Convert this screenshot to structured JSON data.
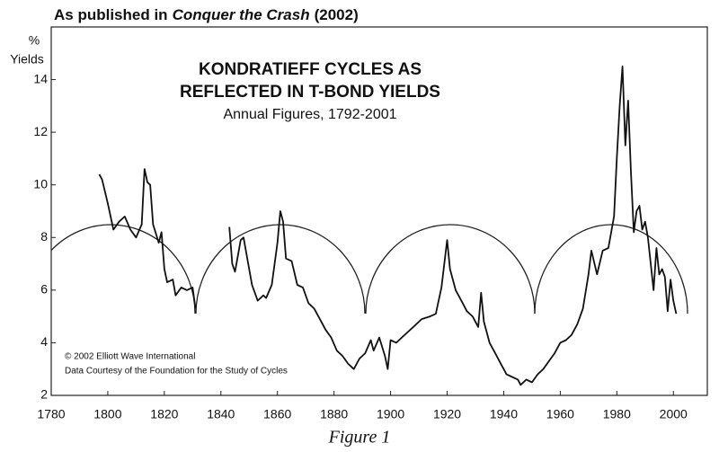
{
  "header": [
    "As published in",
    "Conquer the Crash",
    "(2002)"
  ],
  "chart_data": {
    "type": "line",
    "title": [
      "KONDRATIEFF CYCLES AS",
      "REFLECTED IN T-BOND YIELDS"
    ],
    "subtitle": "Annual Figures, 1792-2001",
    "y_label": [
      "%",
      "Yields"
    ],
    "notes": [
      "© 2002 Elliott Wave International",
      "Data Courtesy of the Foundation for the Study of Cycles"
    ],
    "caption": "Figure 1",
    "color": "#111111",
    "xlim": [
      1780,
      2012
    ],
    "xticks": [
      1780,
      1800,
      1820,
      1840,
      1860,
      1880,
      1900,
      1920,
      1940,
      1960,
      1980,
      2000
    ],
    "ylim": [
      2,
      16
    ],
    "yticks": [
      2,
      4,
      6,
      8,
      10,
      12,
      14
    ],
    "x": [
      1797,
      1798,
      1800,
      1802,
      1804,
      1806,
      1808,
      1810,
      1812,
      1813,
      1814,
      1815,
      1816,
      1818,
      1819,
      1820,
      1821,
      1823,
      1824,
      1826,
      1828,
      1830,
      1831,
      1837,
      1843,
      1844,
      1845,
      1847,
      1848,
      1849,
      1851,
      1853,
      1855,
      1856,
      1858,
      1860,
      1861,
      1862,
      1863,
      1865,
      1867,
      1869,
      1871,
      1873,
      1875,
      1877,
      1879,
      1881,
      1883,
      1885,
      1887,
      1889,
      1891,
      1893,
      1894,
      1896,
      1898,
      1899,
      1900,
      1902,
      1905,
      1908,
      1911,
      1914,
      1916,
      1918,
      1920,
      1921,
      1923,
      1925,
      1927,
      1929,
      1931,
      1932,
      1933,
      1935,
      1937,
      1939,
      1941,
      1943,
      1945,
      1946,
      1948,
      1950,
      1952,
      1954,
      1956,
      1958,
      1960,
      1962,
      1964,
      1966,
      1968,
      1970,
      1971,
      1973,
      1975,
      1977,
      1979,
      1980,
      1981,
      1982,
      1983,
      1984,
      1985,
      1986,
      1987,
      1988,
      1989,
      1990,
      1991,
      1993,
      1994,
      1995,
      1996,
      1997,
      1998,
      1999,
      2000,
      2001
    ],
    "values": [
      10.4,
      10.2,
      9.3,
      8.3,
      8.6,
      8.8,
      8.3,
      8.0,
      8.5,
      10.6,
      10.1,
      10.0,
      8.5,
      7.8,
      8.2,
      6.8,
      6.3,
      6.4,
      5.8,
      6.1,
      6.0,
      6.1,
      5.3,
      null,
      8.4,
      7.0,
      6.7,
      7.9,
      8.0,
      7.4,
      6.2,
      5.6,
      5.8,
      5.7,
      6.2,
      7.8,
      9.0,
      8.6,
      7.2,
      7.1,
      6.2,
      6.1,
      5.5,
      5.3,
      4.9,
      4.5,
      4.2,
      3.7,
      3.5,
      3.2,
      3.0,
      3.4,
      3.6,
      4.1,
      3.7,
      4.2,
      3.5,
      3.0,
      4.1,
      4.0,
      4.3,
      4.6,
      4.9,
      5.0,
      5.1,
      6.1,
      7.9,
      6.8,
      6.0,
      5.6,
      5.2,
      5.0,
      4.6,
      5.9,
      4.8,
      4.0,
      3.6,
      3.2,
      2.8,
      2.7,
      2.6,
      2.4,
      2.6,
      2.5,
      2.8,
      3.0,
      3.3,
      3.6,
      4.0,
      4.1,
      4.3,
      4.7,
      5.3,
      6.6,
      7.5,
      6.6,
      7.5,
      7.6,
      8.8,
      11.0,
      13.0,
      14.5,
      11.5,
      13.2,
      10.5,
      8.2,
      9.0,
      9.2,
      8.3,
      8.6,
      8.0,
      6.0,
      7.6,
      6.6,
      6.8,
      6.5,
      5.2,
      6.4,
      5.6,
      5.1
    ]
  }
}
